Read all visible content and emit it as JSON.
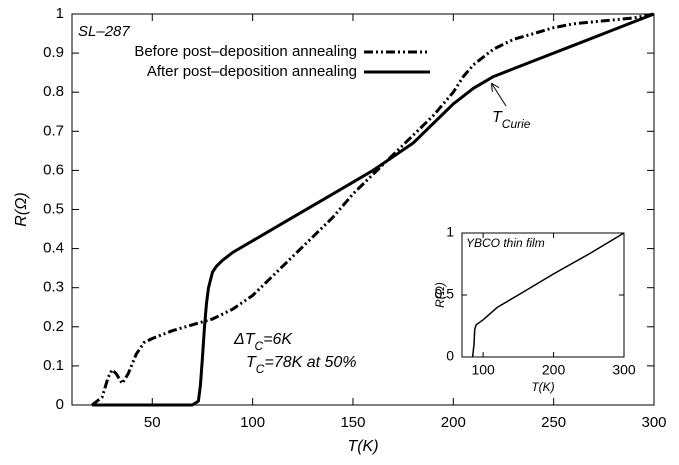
{
  "chart_data": [
    {
      "type": "line",
      "x_label": "T(K)",
      "y_label": "R(Ω)",
      "sample": "SL–287",
      "annotations": {
        "delta_tc": [
          "ΔT",
          "C",
          "=6K"
        ],
        "tc": [
          "T",
          "C",
          "=78K at 50%"
        ],
        "t_curie": [
          "T",
          "Curie"
        ]
      },
      "xlim": [
        10,
        300
      ],
      "xticks": [
        50,
        100,
        150,
        200,
        250,
        300
      ],
      "ylim": [
        0,
        1
      ],
      "yticks": [
        0,
        0.1,
        0.2,
        0.3,
        0.4,
        0.5,
        0.6,
        0.7,
        0.8,
        0.9,
        1
      ],
      "legend": "upper left",
      "series": [
        {
          "name": "Before post–deposition annealing",
          "color": "#000000",
          "linestyle": "dash-dot-dot",
          "x": [
            20,
            25,
            28,
            30,
            32,
            35,
            38,
            42,
            46,
            50,
            60,
            70,
            80,
            90,
            100,
            110,
            120,
            130,
            140,
            150,
            160,
            170,
            180,
            190,
            195,
            200,
            205,
            210,
            215,
            220,
            230,
            240,
            250,
            260,
            270,
            280,
            290,
            300
          ],
          "values": [
            0,
            0.02,
            0.07,
            0.09,
            0.08,
            0.055,
            0.08,
            0.13,
            0.16,
            0.17,
            0.19,
            0.205,
            0.22,
            0.245,
            0.28,
            0.33,
            0.38,
            0.43,
            0.48,
            0.54,
            0.59,
            0.64,
            0.69,
            0.74,
            0.77,
            0.8,
            0.84,
            0.87,
            0.89,
            0.91,
            0.935,
            0.95,
            0.965,
            0.975,
            0.98,
            0.985,
            0.99,
            1.0
          ]
        },
        {
          "name": "After post–deposition annealing",
          "color": "#000000",
          "linestyle": "solid",
          "x": [
            20,
            40,
            60,
            70,
            73,
            74,
            75,
            76,
            77,
            78,
            80,
            82,
            85,
            90,
            100,
            120,
            140,
            160,
            180,
            190,
            200,
            210,
            220,
            240,
            260,
            280,
            300
          ],
          "values": [
            0,
            0,
            0,
            0,
            0.01,
            0.05,
            0.12,
            0.2,
            0.26,
            0.3,
            0.34,
            0.355,
            0.37,
            0.39,
            0.42,
            0.48,
            0.54,
            0.6,
            0.67,
            0.72,
            0.77,
            0.81,
            0.84,
            0.88,
            0.92,
            0.96,
            1.0
          ]
        }
      ]
    },
    {
      "type": "line",
      "title": "YBCO thin film",
      "x_label": "T(K)",
      "y_label": "R(Ω)",
      "xlim": [
        70,
        300
      ],
      "xticks": [
        100,
        200,
        300
      ],
      "ylim": [
        0,
        1
      ],
      "yticks": [
        0,
        0.5,
        1
      ],
      "series": [
        {
          "color": "#000000",
          "linestyle": "solid",
          "x": [
            85,
            87,
            88,
            90,
            100,
            120,
            150,
            200,
            250,
            300
          ],
          "values": [
            0,
            0.1,
            0.22,
            0.26,
            0.3,
            0.4,
            0.5,
            0.67,
            0.83,
            1.0
          ]
        }
      ]
    }
  ]
}
